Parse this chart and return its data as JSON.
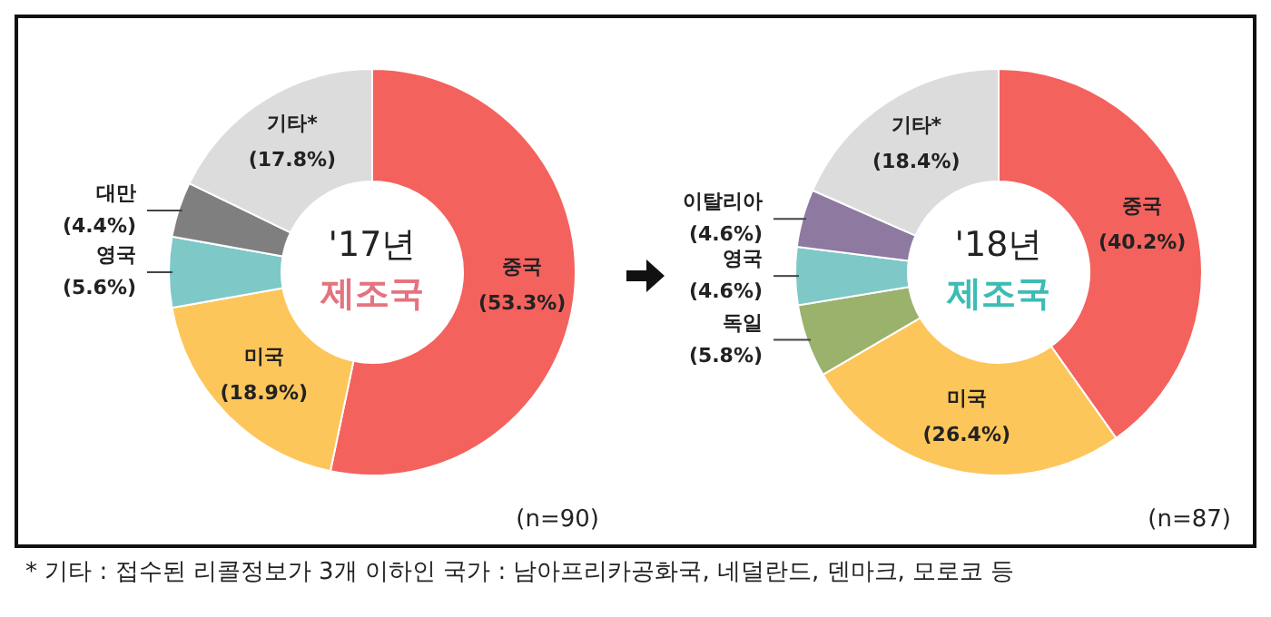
{
  "chart_data": [
    {
      "type": "donut",
      "title": "'17년",
      "subtitle": "제조국",
      "categories": [
        "중국",
        "미국",
        "영국",
        "대만",
        "기타*"
      ],
      "values": [
        53.3,
        18.9,
        5.6,
        4.4,
        17.8
      ],
      "value_labels": [
        "(53.3%)",
        "(18.9%)",
        "(5.6%)",
        "(4.4%)",
        "(17.8%)"
      ],
      "colors": [
        "#f4625e",
        "#fdc65a",
        "#7ec8c8",
        "#7f7f7f",
        "#dcdcdc"
      ],
      "annotations": [
        "(n=90)",
        "* 기타 : 접수된 리콜정보가 3개 이하인 국가 : 남아프리카공화국, 네덜란드, 덴마크, 모로코 등"
      ],
      "legend": false
    },
    {
      "type": "donut",
      "title": "'18년",
      "subtitle": "제조국",
      "categories": [
        "중국",
        "미국",
        "독일",
        "영국",
        "이탈리아",
        "기타*"
      ],
      "values": [
        40.2,
        26.4,
        5.8,
        4.6,
        4.6,
        18.4
      ],
      "value_labels": [
        "(40.2%)",
        "(26.4%)",
        "(5.8%)",
        "(4.6%)",
        "(4.6%)",
        "(18.4%)"
      ],
      "colors": [
        "#f4625e",
        "#fdc65a",
        "#9bb26c",
        "#7ec8c8",
        "#8e7aa0",
        "#dcdcdc"
      ],
      "annotations": [
        "(n=87)"
      ],
      "legend": false
    }
  ]
}
